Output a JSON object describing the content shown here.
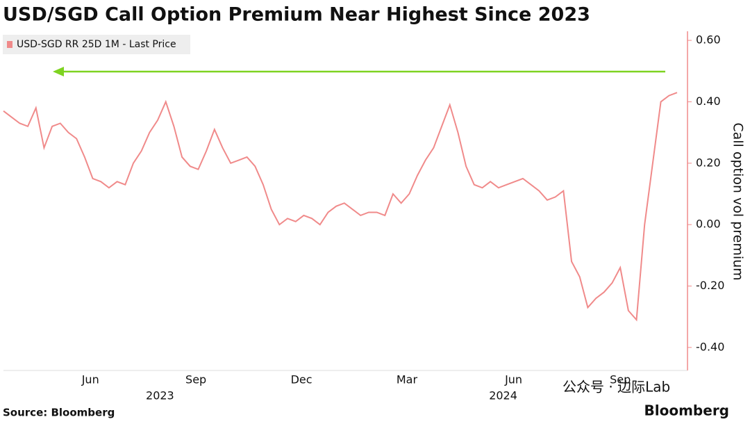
{
  "chart_data": {
    "type": "line",
    "title": "USD/SGD Call Option Premium Near Highest Since 2023",
    "y_axis_label": "Call option vol premium",
    "source": "Source: Bloomberg",
    "brand": "Bloomberg",
    "watermark": "公众号 · 边际Lab",
    "series": [
      {
        "name": "USD-SGD RR 25D 1M - Last Price",
        "color": "#f08a8a",
        "x": [
          0,
          7,
          14,
          21,
          28,
          35,
          42,
          49,
          56,
          63,
          70,
          77,
          84,
          91,
          98,
          105,
          112,
          119,
          126,
          133,
          140,
          147,
          154,
          161,
          168,
          175,
          182,
          189,
          196,
          203,
          210,
          217,
          224,
          231,
          238,
          245,
          252,
          259,
          266,
          273,
          280,
          287,
          294,
          301,
          308,
          315,
          322,
          329,
          336,
          343,
          350,
          357,
          364,
          371,
          378,
          385,
          392,
          399,
          406,
          413,
          420,
          427,
          434,
          441,
          448,
          455,
          462,
          469,
          476,
          483,
          490,
          497,
          504,
          511,
          518,
          525,
          532,
          539,
          546,
          553,
          560,
          567,
          574,
          581
        ],
        "values": [
          0.37,
          0.35,
          0.33,
          0.32,
          0.38,
          0.25,
          0.32,
          0.33,
          0.3,
          0.28,
          0.22,
          0.15,
          0.14,
          0.12,
          0.14,
          0.13,
          0.2,
          0.24,
          0.3,
          0.34,
          0.4,
          0.32,
          0.22,
          0.19,
          0.18,
          0.24,
          0.31,
          0.25,
          0.2,
          0.21,
          0.22,
          0.19,
          0.13,
          0.05,
          0.0,
          0.02,
          0.01,
          0.03,
          0.02,
          0.0,
          0.04,
          0.06,
          0.07,
          0.05,
          0.03,
          0.04,
          0.04,
          0.03,
          0.1,
          0.07,
          0.1,
          0.16,
          0.21,
          0.25,
          0.32,
          0.39,
          0.3,
          0.19,
          0.13,
          0.12,
          0.14,
          0.12,
          0.13,
          0.14,
          0.15,
          0.13,
          0.11,
          0.08,
          0.09,
          0.11,
          -0.12,
          -0.17,
          -0.27,
          -0.24,
          -0.22,
          -0.19,
          -0.14,
          -0.28,
          -0.31,
          0.0,
          0.2,
          0.4,
          0.42,
          0.43
        ]
      }
    ],
    "xlim": [
      0,
      590
    ],
    "xticks": [
      {
        "value": 75,
        "label": "Jun"
      },
      {
        "value": 166,
        "label": "Sep"
      },
      {
        "value": 257,
        "label": "Dec"
      },
      {
        "value": 348,
        "label": "Mar"
      },
      {
        "value": 440,
        "label": "Jun"
      },
      {
        "value": 532,
        "label": "Sep"
      }
    ],
    "year_labels": [
      {
        "value": 135,
        "label": "2023"
      },
      {
        "value": 431,
        "label": "2024"
      }
    ],
    "ylim": [
      -0.475,
      0.65
    ],
    "yticks": [
      {
        "value": 0.6,
        "label": "0.60"
      },
      {
        "value": 0.4,
        "label": "0.40"
      },
      {
        "value": 0.2,
        "label": "0.20"
      },
      {
        "value": 0,
        "label": "0.00"
      },
      {
        "value": -0.2,
        "label": "-0.20"
      },
      {
        "value": -0.4,
        "label": "-0.40"
      }
    ]
  }
}
